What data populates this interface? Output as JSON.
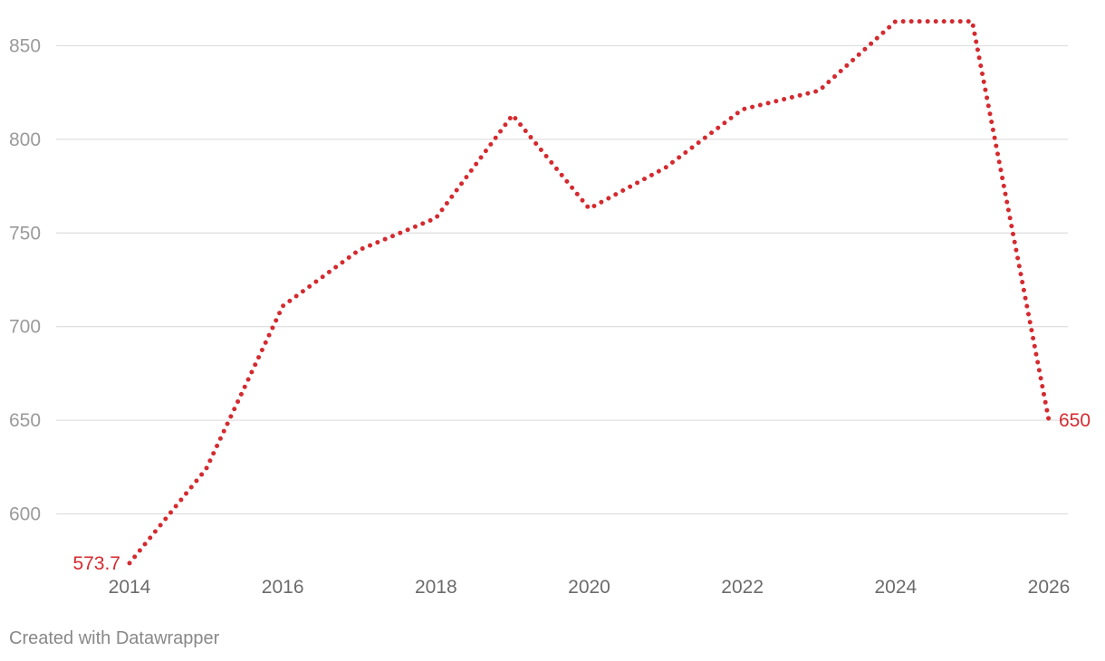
{
  "chart_data": {
    "type": "line",
    "title": "",
    "xlabel": "",
    "ylabel": "",
    "x": [
      2014,
      2015,
      2016,
      2017,
      2018,
      2019,
      2020,
      2021,
      2022,
      2023,
      2024,
      2025,
      2026
    ],
    "series": [
      {
        "values": [
          573.7,
          624,
          711,
          741,
          758,
          813,
          763,
          785,
          816,
          826,
          863,
          863,
          650
        ],
        "color": "#d42a2f",
        "style": "dotted"
      }
    ],
    "xticks": [
      "2014",
      "2016",
      "2018",
      "2020",
      "2022",
      "2024",
      "2026"
    ],
    "yticks": [
      "600",
      "650",
      "700",
      "750",
      "800",
      "850"
    ],
    "xlim": [
      2014,
      2026
    ],
    "ylim": [
      573.7,
      863
    ],
    "grid": "horizontal",
    "legend": "none",
    "labels": {
      "start": "573.7",
      "end": "650"
    }
  },
  "footer": {
    "credit": "Created with Datawrapper"
  }
}
